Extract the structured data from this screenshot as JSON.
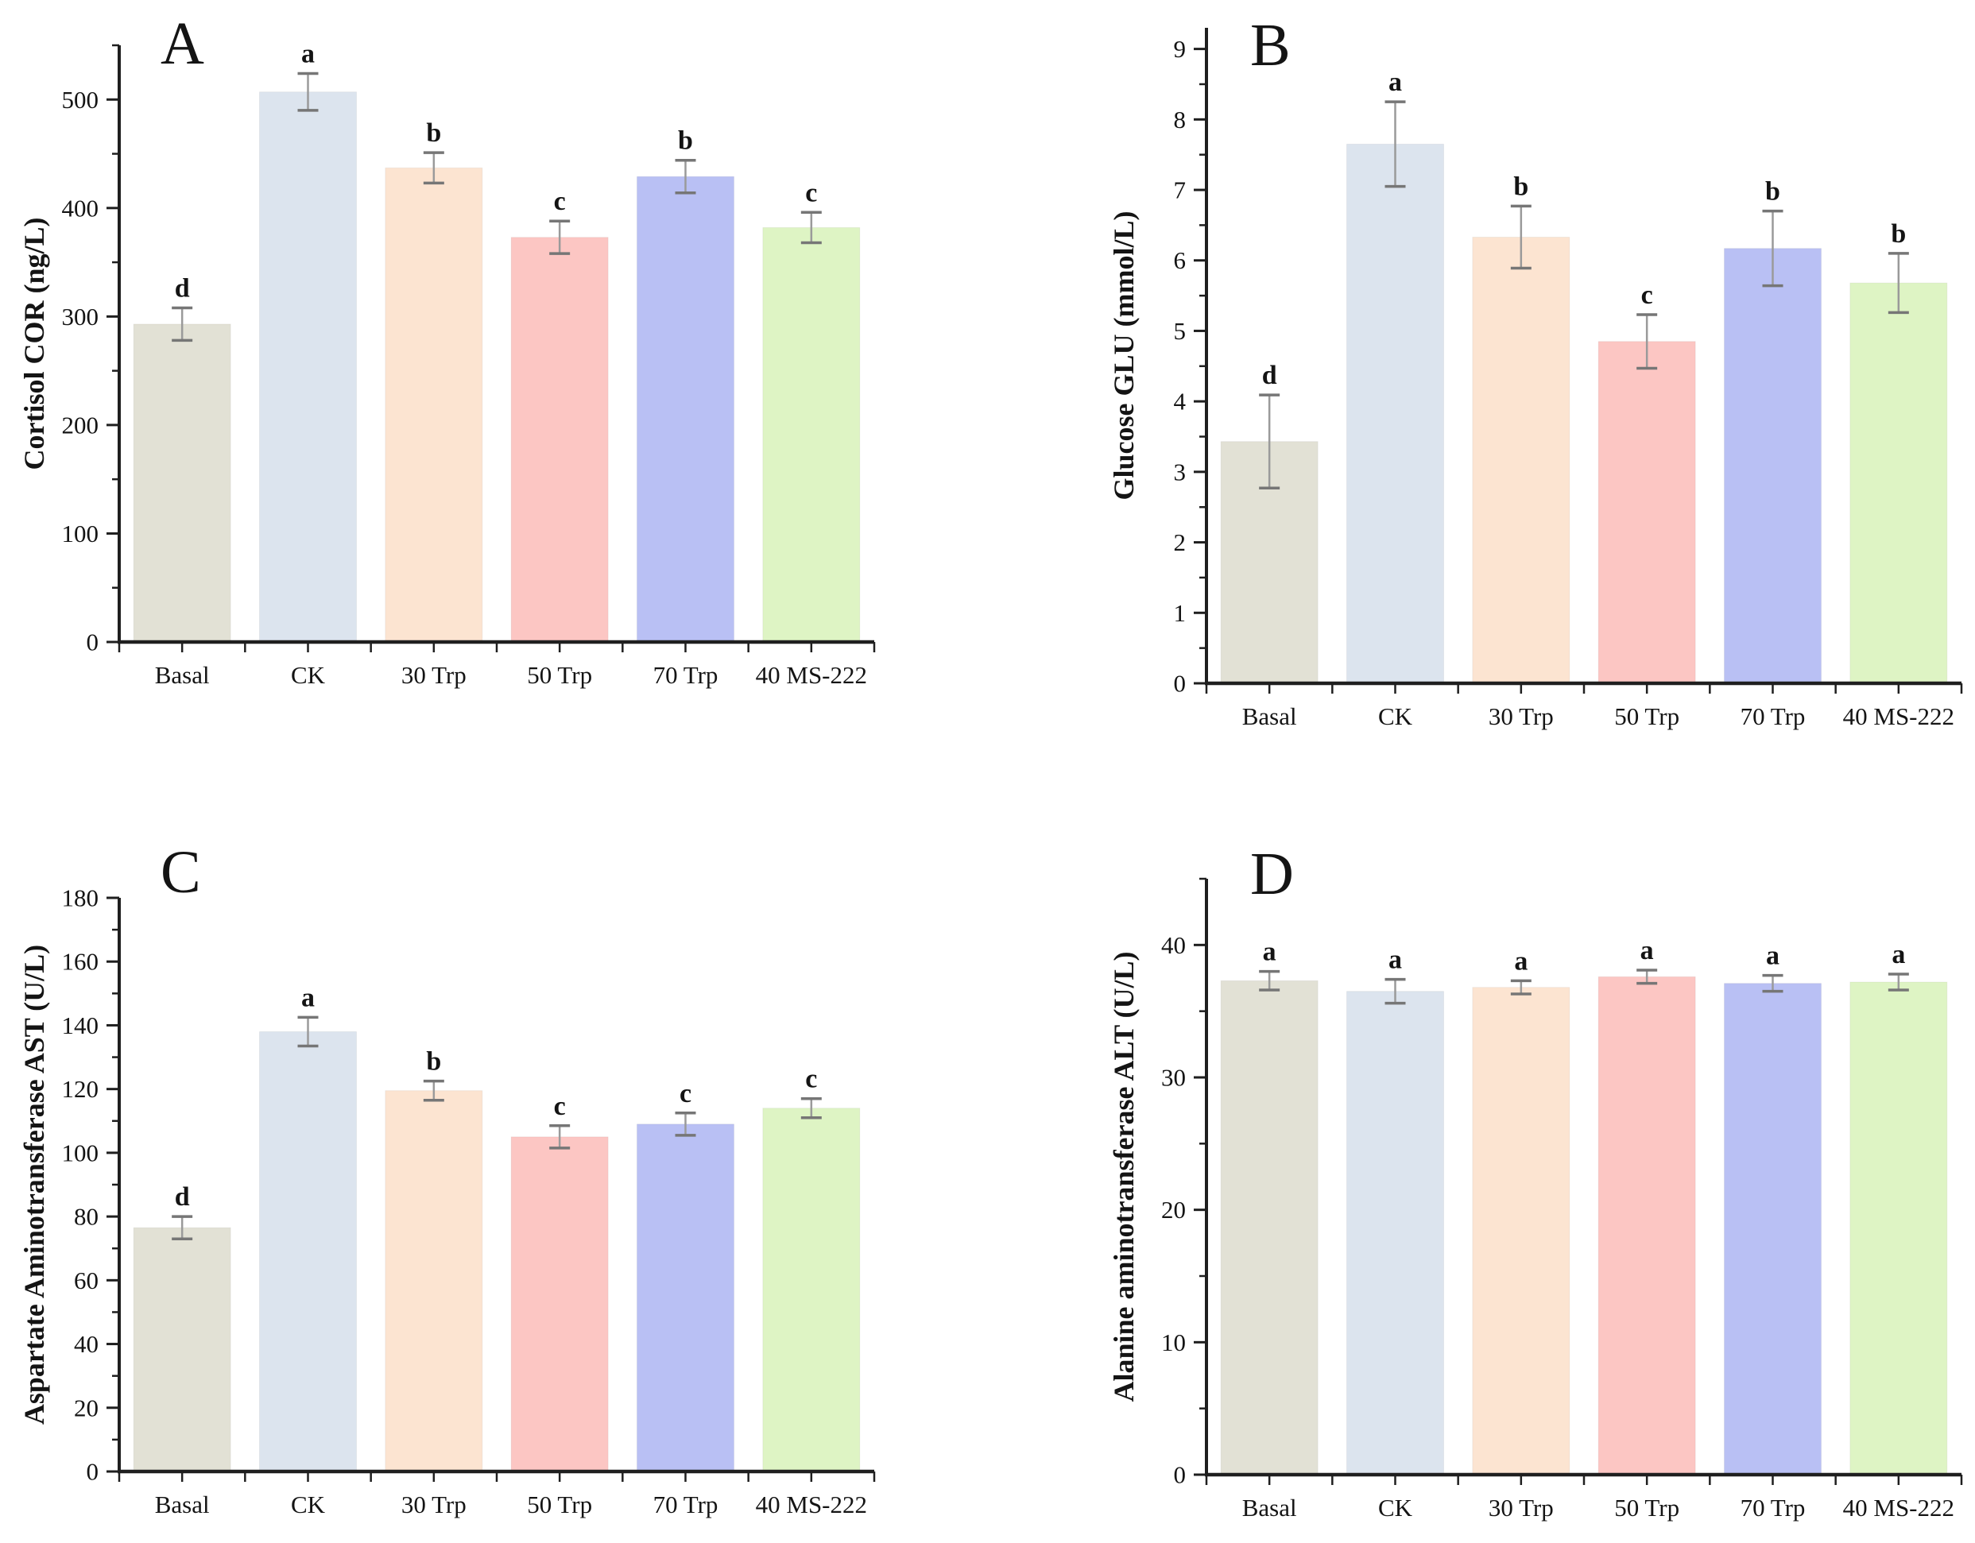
{
  "figure": {
    "background": "#ffffff",
    "axis_color": "#1f1f1f",
    "text_color": "#141414",
    "error_bar_color": "#9a9a9a",
    "error_cap_color": "#767676",
    "categories": [
      "Basal",
      "CK",
      "30 Trp",
      "50 Trp",
      "70 Trp",
      "40 MS-222"
    ],
    "bar_colors": [
      "#e2e1d5",
      "#dce4ee",
      "#fce4d1",
      "#fcc6c3",
      "#b9c0f4",
      "#def4c4"
    ]
  },
  "chart_data": [
    {
      "panel": "A",
      "type": "bar",
      "title": "",
      "ylabel": "Cortisol COR (ng/L)",
      "xlabel": "",
      "categories": [
        "Basal",
        "CK",
        "30 Trp",
        "50 Trp",
        "70 Trp",
        "40 MS-222"
      ],
      "values": [
        293,
        507,
        437,
        373,
        429,
        382
      ],
      "errors": [
        15,
        17,
        14,
        15,
        15,
        14
      ],
      "sig_letters": [
        "d",
        "a",
        "b",
        "c",
        "b",
        "c"
      ],
      "ylim": [
        0,
        550
      ],
      "ytick_major": 100,
      "ytick_minor": 50,
      "grid": false,
      "legend": "none"
    },
    {
      "panel": "B",
      "type": "bar",
      "title": "",
      "ylabel": "Glucose GLU (mmol/L)",
      "xlabel": "",
      "categories": [
        "Basal",
        "CK",
        "30 Trp",
        "50 Trp",
        "70 Trp",
        "40 MS-222"
      ],
      "values": [
        3.43,
        7.65,
        6.33,
        4.85,
        6.17,
        5.68
      ],
      "errors": [
        0.66,
        0.6,
        0.44,
        0.38,
        0.53,
        0.42
      ],
      "sig_letters": [
        "d",
        "a",
        "b",
        "c",
        "b",
        "b"
      ],
      "ylim": [
        0,
        9.3
      ],
      "ytick_major": 1,
      "ytick_minor": 0.5,
      "grid": false,
      "legend": "none"
    },
    {
      "panel": "C",
      "type": "bar",
      "title": "",
      "ylabel": "Aspartate Aminotransferase AST (U/L)",
      "xlabel": "",
      "categories": [
        "Basal",
        "CK",
        "30 Trp",
        "50 Trp",
        "70 Trp",
        "40 MS-222"
      ],
      "values": [
        76.5,
        138,
        119.5,
        105,
        109,
        114
      ],
      "errors": [
        3.5,
        4.5,
        3,
        3.5,
        3.5,
        3
      ],
      "sig_letters": [
        "d",
        "a",
        "b",
        "c",
        "c",
        "c"
      ],
      "ylim": [
        0,
        180
      ],
      "ytick_major": 20,
      "ytick_minor": 10,
      "grid": false,
      "legend": "none"
    },
    {
      "panel": "D",
      "type": "bar",
      "title": "",
      "ylabel": "Alanine aminotransferase ALT (U/L)",
      "xlabel": "",
      "categories": [
        "Basal",
        "CK",
        "30 Trp",
        "50 Trp",
        "70 Trp",
        "40 MS-222"
      ],
      "values": [
        37.3,
        36.5,
        36.8,
        37.6,
        37.1,
        37.2
      ],
      "errors": [
        0.7,
        0.9,
        0.5,
        0.5,
        0.6,
        0.6
      ],
      "sig_letters": [
        "a",
        "a",
        "a",
        "a",
        "a",
        "a"
      ],
      "ylim": [
        0,
        45
      ],
      "ytick_major": 10,
      "ytick_minor": 5,
      "grid": false,
      "legend": "none"
    }
  ]
}
